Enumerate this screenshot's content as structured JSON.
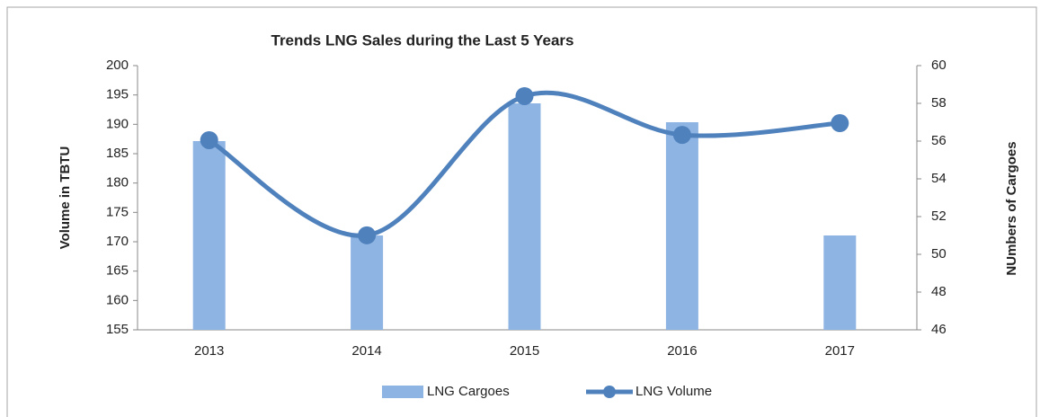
{
  "chart_data": {
    "type": "bar_line",
    "title": "Trends LNG Sales during the Last 5 Years",
    "ylabel": "Volume in TBTU",
    "y2label": "NUmbers of Cargoes",
    "categories": [
      "2013",
      "2014",
      "2015",
      "2016",
      "2017"
    ],
    "series": [
      {
        "name": "LNG Cargoes",
        "type": "bar",
        "color": "#8eb4e3",
        "axis": "y2",
        "values": [
          56,
          51,
          58,
          57,
          51
        ]
      },
      {
        "name": "LNG Volume",
        "type": "line",
        "color": "#4f81bd",
        "axis": "y",
        "values": [
          187.3,
          171.1,
          194.8,
          188.2,
          190.2
        ]
      }
    ],
    "ylim": [
      155,
      200
    ],
    "yticks": [
      155,
      160,
      165,
      170,
      175,
      180,
      185,
      190,
      195,
      200
    ],
    "y2lim": [
      46,
      60
    ],
    "y2ticks": [
      46,
      48,
      50,
      52,
      54,
      56,
      58,
      60
    ],
    "legend": "bottom"
  }
}
